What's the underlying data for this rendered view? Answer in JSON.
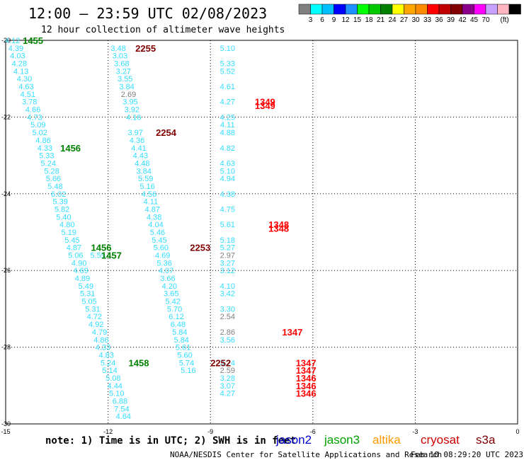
{
  "header": {
    "title": "12:00 — 23:59 UTC 02/08/2023",
    "subtitle": "12 hour collection of altimeter wave heights"
  },
  "colorbar": {
    "colors": [
      "#808080",
      "#00ffff",
      "#00bfff",
      "#0000ff",
      "#1e90ff",
      "#00ff00",
      "#00c800",
      "#008000",
      "#ffff00",
      "#ffa500",
      "#ff8c00",
      "#ff0000",
      "#c00000",
      "#800000",
      "#8b008b",
      "#ff00ff",
      "#c8a0ff",
      "#ffb6c1",
      "#000000"
    ],
    "labels": [
      "3",
      "6",
      "9",
      "12",
      "15",
      "18",
      "21",
      "24",
      "27",
      "30",
      "33",
      "36",
      "39",
      "42",
      "45",
      "70"
    ],
    "unit": "(ft)"
  },
  "footer": {
    "note": "note: 1) Time is in UTC; 2) SWH is in feet",
    "legend": [
      {
        "name": "jason2",
        "color": "#0000cc"
      },
      {
        "name": "jason3",
        "color": "#00a000"
      },
      {
        "name": "altika",
        "color": "#ff9900"
      },
      {
        "name": "cryosat",
        "color": "#cc0000"
      },
      {
        "name": "s3a",
        "color": "#800000"
      }
    ],
    "credit": "NOAA/NESDIS Center for Satellite Applications and Research",
    "timestamp": "Feb 10 08:29:20 UTC 2023"
  },
  "chart_data": {
    "type": "scatter",
    "xlim": [
      -15,
      0
    ],
    "ylim": [
      -30,
      -20
    ],
    "xticks": [
      "-15",
      "-12",
      "-9",
      "-6",
      "-3",
      "0"
    ],
    "yticks": [
      "-20",
      "-22",
      "-24",
      "-26",
      "-28",
      "-30"
    ],
    "grid": true,
    "tracks": [
      {
        "id": "A",
        "color": "#33ddff",
        "points": [
          [
            -14.8,
            -20.0,
            "4.12"
          ],
          [
            -14.7,
            -20.2,
            "4.39"
          ],
          [
            -14.65,
            -20.4,
            "4.03"
          ],
          [
            -14.6,
            -20.6,
            "4.28"
          ],
          [
            -14.55,
            -20.8,
            "4.13"
          ],
          [
            -14.45,
            -21.0,
            "4.30"
          ],
          [
            -14.4,
            -21.2,
            "4.63"
          ],
          [
            -14.35,
            -21.4,
            "4.51"
          ],
          [
            -14.3,
            -21.6,
            "3.78"
          ],
          [
            -14.2,
            -21.8,
            "4.66"
          ],
          [
            -14.15,
            -22.0,
            "4.73"
          ],
          [
            -14.05,
            -22.2,
            "5.09"
          ],
          [
            -14.0,
            -22.4,
            "5.02"
          ],
          [
            -13.9,
            -22.6,
            "4.86"
          ],
          [
            -13.85,
            -22.8,
            "4.33"
          ],
          [
            -13.8,
            -23.0,
            "5.33"
          ],
          [
            -13.75,
            -23.2,
            "5.24"
          ],
          [
            -13.65,
            -23.4,
            "5.28"
          ],
          [
            -13.6,
            -23.6,
            "5.66"
          ],
          [
            -13.55,
            -23.8,
            "5.48"
          ],
          [
            -13.45,
            -24.0,
            "6.02"
          ],
          [
            -13.4,
            -24.2,
            "5.39"
          ],
          [
            -13.35,
            -24.4,
            "5.82"
          ],
          [
            -13.3,
            -24.6,
            "5.40"
          ],
          [
            -13.2,
            -24.8,
            "4.80"
          ],
          [
            -13.15,
            -25.0,
            "5.19"
          ],
          [
            -13.05,
            -25.2,
            "5.45"
          ],
          [
            -13.0,
            -25.4,
            "4.87"
          ],
          [
            -12.95,
            -25.6,
            "5.06"
          ],
          [
            -12.85,
            -25.8,
            "4.90"
          ],
          [
            -12.8,
            -26.0,
            "4.69"
          ],
          [
            -12.75,
            -26.2,
            "4.89"
          ],
          [
            -12.65,
            -26.4,
            "5.49"
          ],
          [
            -12.6,
            -26.6,
            "5.31"
          ],
          [
            -12.55,
            -26.8,
            "5.05"
          ],
          [
            -12.45,
            -27.0,
            "5.31"
          ],
          [
            -12.4,
            -27.2,
            "4.72"
          ],
          [
            -12.35,
            -27.4,
            "4.92"
          ],
          [
            -12.25,
            -27.6,
            "4.79"
          ],
          [
            -12.2,
            -27.8,
            "4.86"
          ],
          [
            -12.15,
            -28.0,
            "4.33"
          ],
          [
            -12.05,
            -28.2,
            "4.83"
          ],
          [
            -12.0,
            -28.4,
            "5.24"
          ],
          [
            -11.95,
            -28.6,
            "5.14"
          ],
          [
            -11.85,
            -28.8,
            "5.08"
          ],
          [
            -11.8,
            -29.0,
            "4.44"
          ],
          [
            -11.75,
            -29.2,
            "5.10"
          ],
          [
            -11.65,
            -29.4,
            "6.88"
          ],
          [
            -11.6,
            -29.6,
            "7.54"
          ],
          [
            -11.55,
            -29.8,
            "4.64"
          ]
        ]
      },
      {
        "id": "B",
        "color": "#33ddff",
        "points": [
          [
            -12.3,
            -25.6,
            "5.55"
          ]
        ]
      },
      {
        "id": "C",
        "color": "#33ddff",
        "points": [
          [
            -11.7,
            -20.2,
            "3.48"
          ],
          [
            -11.65,
            -20.4,
            "3.03"
          ],
          [
            -11.6,
            -20.6,
            "3.68"
          ],
          [
            -11.55,
            -20.8,
            "3.27"
          ],
          [
            -11.5,
            -21.0,
            "3.55"
          ],
          [
            -11.45,
            -21.2,
            "3.84"
          ],
          [
            -11.4,
            -21.4,
            "2.69"
          ],
          [
            -11.35,
            -21.6,
            "3.95"
          ],
          [
            -11.3,
            -21.8,
            "3.92"
          ],
          [
            -11.25,
            -22.0,
            "4.16"
          ],
          [
            -11.2,
            -22.4,
            "3.97"
          ],
          [
            -11.15,
            -22.6,
            "4.36"
          ],
          [
            -11.1,
            -22.8,
            "4.41"
          ],
          [
            -11.05,
            -23.0,
            "4.43"
          ],
          [
            -11.0,
            -23.2,
            "4.48"
          ],
          [
            -10.95,
            -23.4,
            "3.84"
          ],
          [
            -10.9,
            -23.6,
            "5.59"
          ],
          [
            -10.85,
            -23.8,
            "5.16"
          ],
          [
            -10.8,
            -24.0,
            "4.56"
          ],
          [
            -10.75,
            -24.2,
            "4.11"
          ],
          [
            -10.7,
            -24.4,
            "4.87"
          ],
          [
            -10.65,
            -24.6,
            "4.38"
          ],
          [
            -10.6,
            -24.8,
            "4.04"
          ],
          [
            -10.55,
            -25.0,
            "5.46"
          ],
          [
            -10.5,
            -25.2,
            "5.45"
          ],
          [
            -10.45,
            -25.4,
            "5.60"
          ],
          [
            -10.4,
            -25.6,
            "4.69"
          ],
          [
            -10.35,
            -25.8,
            "5.36"
          ],
          [
            -10.3,
            -26.0,
            "4.07"
          ],
          [
            -10.25,
            -26.2,
            "3.66"
          ],
          [
            -10.2,
            -26.4,
            "4.20"
          ],
          [
            -10.15,
            -26.6,
            "3.65"
          ],
          [
            -10.1,
            -26.8,
            "5.42"
          ],
          [
            -10.05,
            -27.0,
            "5.70"
          ],
          [
            -10.0,
            -27.2,
            "6.12"
          ],
          [
            -9.95,
            -27.4,
            "6.48"
          ],
          [
            -9.9,
            -27.6,
            "5.84"
          ],
          [
            -9.85,
            -27.8,
            "5.84"
          ],
          [
            -9.8,
            -28.0,
            "5.61"
          ],
          [
            -9.75,
            -28.2,
            "5.60"
          ],
          [
            -9.7,
            -28.4,
            "5.74"
          ],
          [
            -9.65,
            -28.6,
            "5.16"
          ]
        ]
      },
      {
        "id": "D",
        "color": "#33ddff",
        "points": [
          [
            -8.5,
            -20.2,
            "5.10"
          ],
          [
            -8.5,
            -20.6,
            "5.33"
          ],
          [
            -8.5,
            -20.8,
            "5.52"
          ],
          [
            -8.5,
            -21.2,
            "4.61"
          ],
          [
            -8.5,
            -21.6,
            "4.27"
          ],
          [
            -8.5,
            -22.0,
            "4.25"
          ],
          [
            -8.5,
            -22.2,
            "4.11"
          ],
          [
            -8.5,
            -22.4,
            "4.88"
          ],
          [
            -8.5,
            -22.8,
            "4.82"
          ],
          [
            -8.5,
            -23.2,
            "4.63"
          ],
          [
            -8.5,
            -23.4,
            "5.10"
          ],
          [
            -8.5,
            -23.6,
            "4.94"
          ],
          [
            -8.5,
            -24.0,
            "4.38"
          ],
          [
            -8.5,
            -24.4,
            "4.75"
          ],
          [
            -8.5,
            -24.8,
            "5.61"
          ],
          [
            -8.5,
            -25.2,
            "5.18"
          ],
          [
            -8.5,
            -25.4,
            "5.27"
          ],
          [
            -8.5,
            -25.6,
            "2.97"
          ],
          [
            -8.5,
            -25.8,
            "3.27"
          ],
          [
            -8.5,
            -26.0,
            "3.12"
          ],
          [
            -8.5,
            -26.4,
            "4.10"
          ],
          [
            -8.5,
            -26.6,
            "3.42"
          ],
          [
            -8.5,
            -27.0,
            "3.30"
          ],
          [
            -8.5,
            -27.2,
            "2.54"
          ],
          [
            -8.5,
            -27.6,
            "2.86"
          ],
          [
            -8.5,
            -27.8,
            "3.56"
          ],
          [
            -8.5,
            -28.4,
            "3.74"
          ],
          [
            -8.5,
            -28.6,
            "2.59"
          ],
          [
            -8.5,
            -28.8,
            "3.28"
          ],
          [
            -8.5,
            -29.0,
            "3.07"
          ],
          [
            -8.5,
            -29.2,
            "4.27"
          ]
        ]
      }
    ],
    "pass_labels": [
      {
        "text": "1455",
        "color": "#008000",
        "x": -14.5,
        "y": -20.0
      },
      {
        "text": "1456",
        "color": "#008000",
        "x": -13.4,
        "y": -22.8
      },
      {
        "text": "1456",
        "color": "#008000",
        "x": -12.5,
        "y": -25.4
      },
      {
        "text": "1457",
        "color": "#008000",
        "x": -12.2,
        "y": -25.6
      },
      {
        "text": "1458",
        "color": "#008000",
        "x": -11.4,
        "y": -28.4
      },
      {
        "text": "2255",
        "color": "#800000",
        "x": -11.2,
        "y": -20.2
      },
      {
        "text": "2254",
        "color": "#800000",
        "x": -10.6,
        "y": -22.4
      },
      {
        "text": "2253",
        "color": "#800000",
        "x": -9.6,
        "y": -25.4
      },
      {
        "text": "2252",
        "color": "#800000",
        "x": -9.0,
        "y": -28.4
      },
      {
        "text": "1349",
        "color": "#ff0000",
        "x": -7.7,
        "y": -21.6
      },
      {
        "text": "1349",
        "color": "#ff0000",
        "x": -7.7,
        "y": -21.7
      },
      {
        "text": "1348",
        "color": "#ff0000",
        "x": -7.3,
        "y": -24.8
      },
      {
        "text": "1348",
        "color": "#ff0000",
        "x": -7.3,
        "y": -24.9
      },
      {
        "text": "1347",
        "color": "#ff0000",
        "x": -6.9,
        "y": -27.6
      },
      {
        "text": "1347",
        "color": "#ff0000",
        "x": -6.5,
        "y": -28.4
      },
      {
        "text": "1347",
        "color": "#ff0000",
        "x": -6.5,
        "y": -28.6
      },
      {
        "text": "1346",
        "color": "#ff0000",
        "x": -6.5,
        "y": -28.8
      },
      {
        "text": "1346",
        "color": "#ff0000",
        "x": -6.5,
        "y": -29.0
      },
      {
        "text": "1346",
        "color": "#ff0000",
        "x": -6.5,
        "y": -29.2
      }
    ]
  }
}
